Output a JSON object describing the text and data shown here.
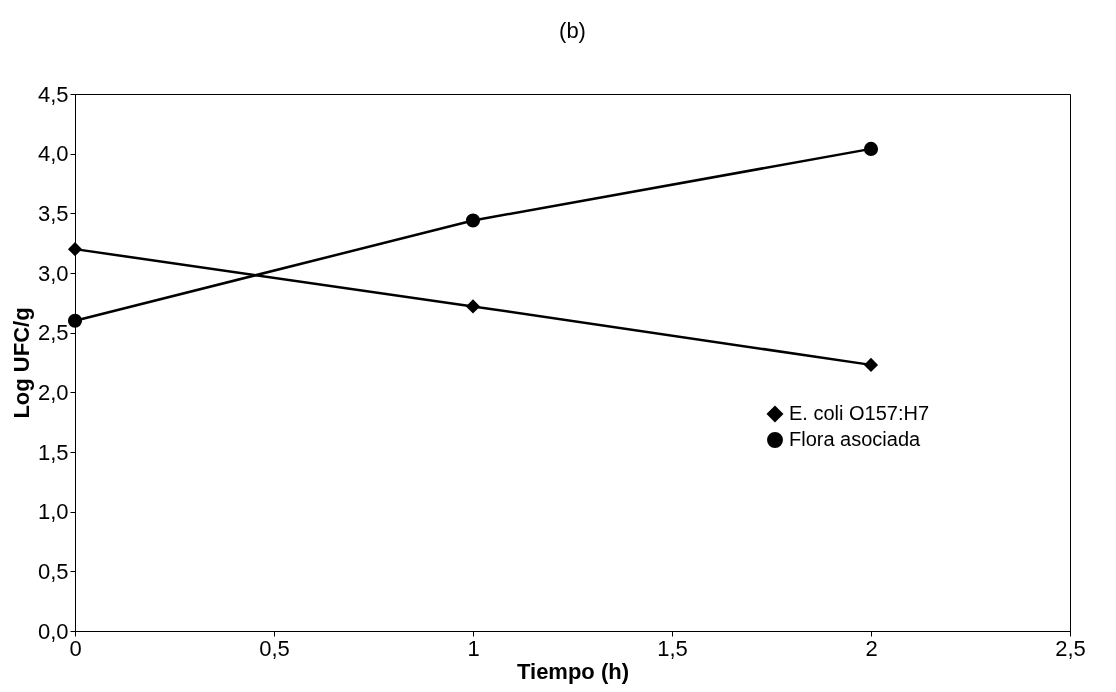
{
  "chart_data": {
    "type": "line",
    "title": "(b)",
    "xlabel": "Tiempo (h)",
    "ylabel": "Log UFC/g",
    "x": [
      0,
      1,
      2
    ],
    "series": [
      {
        "name": "E. coli O157:H7",
        "color": "#000000",
        "marker": "diamond",
        "values": [
          3.2,
          2.72,
          2.23
        ]
      },
      {
        "name": "Flora asociada",
        "color": "#000000",
        "marker": "circle",
        "values": [
          2.6,
          3.44,
          4.04
        ]
      }
    ],
    "xlim": [
      0,
      2.5
    ],
    "xticks": [
      0,
      {
        "value": 0.5,
        "label": "0,5"
      },
      1,
      {
        "value": 1.5,
        "label": "1,5"
      },
      2,
      {
        "value": 2.5,
        "label": "2,5"
      }
    ],
    "ylim": [
      0,
      4.5
    ],
    "yticks": [
      {
        "value": 0,
        "label": "0,0"
      },
      {
        "value": 0.5,
        "label": "0,5"
      },
      {
        "value": 1,
        "label": "1,0"
      },
      {
        "value": 1.5,
        "label": "1,5"
      },
      {
        "value": 2,
        "label": "2,0"
      },
      {
        "value": 2.5,
        "label": "2,5"
      },
      {
        "value": 3,
        "label": "3,0"
      },
      {
        "value": 3.5,
        "label": "3,5"
      },
      {
        "value": 4,
        "label": "4,0"
      },
      {
        "value": 4.5,
        "label": "4,5"
      }
    ],
    "grid": false,
    "legend": "right",
    "line_style": "solid"
  }
}
